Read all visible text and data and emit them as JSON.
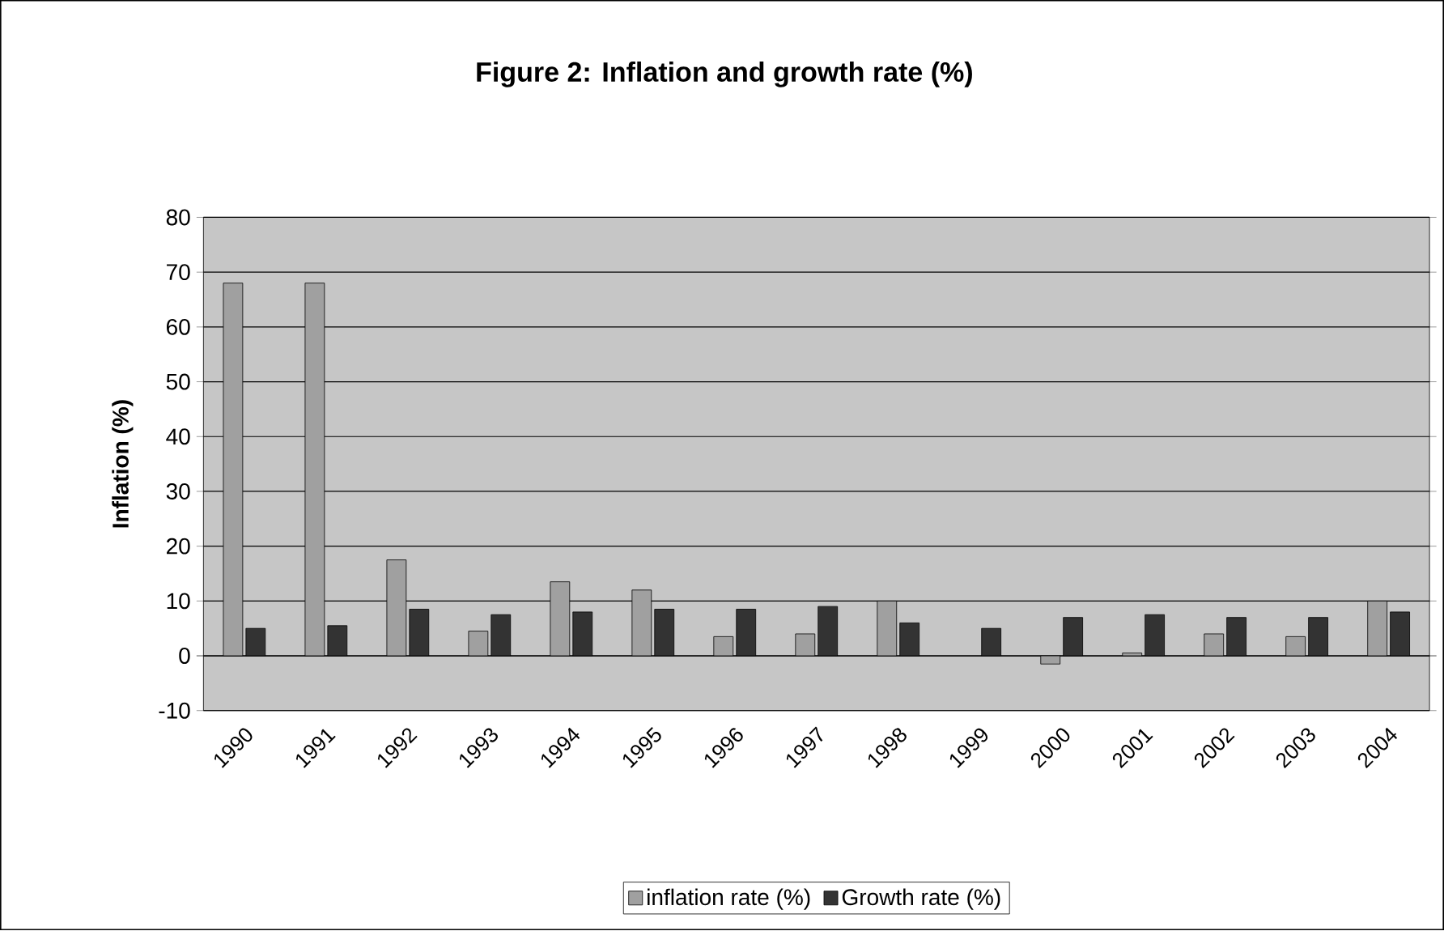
{
  "chart_data": {
    "type": "bar",
    "title": "Figure 2: Inflation and growth rate (%)",
    "ylabel": "Inflation (%)",
    "categories": [
      "1990",
      "1991",
      "1992",
      "1993",
      "1994",
      "1995",
      "1996",
      "1997",
      "1998",
      "1999",
      "2000",
      "2001",
      "2002",
      "2003",
      "2004"
    ],
    "series": [
      {
        "name": "inflation rate (%)",
        "color": "#a0a0a0",
        "values": [
          68,
          68,
          17.5,
          4.5,
          13.5,
          12,
          3.5,
          4,
          10,
          null,
          -1.5,
          0.5,
          4,
          3.5,
          10
        ]
      },
      {
        "name": "Growth rate (%)",
        "color": "#333333",
        "values": [
          5,
          5.5,
          8.5,
          7.5,
          8,
          8.5,
          8.5,
          9,
          6,
          5,
          7,
          7.5,
          7,
          7,
          8
        ]
      }
    ],
    "ylim": [
      -10,
      80
    ],
    "yticks": [
      -10,
      0,
      10,
      20,
      30,
      40,
      50,
      60,
      70,
      80
    ],
    "grid": "y",
    "legend": "bottom"
  }
}
